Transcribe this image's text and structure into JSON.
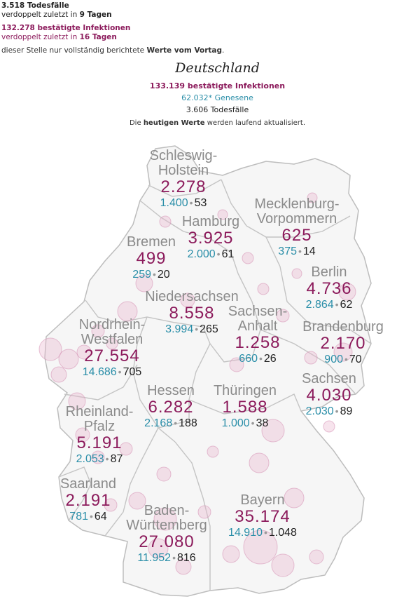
{
  "summary": {
    "deaths": "3.518 Todesfälle",
    "deaths_doubling_prefix": "verdoppelt zuletzt in",
    "deaths_doubling_value": "9 Tagen",
    "infections": "132.278 bestätigte Infektionen",
    "infections_doubling_prefix": "verdoppelt zuletzt in",
    "infections_doubling_value": "16 Tagen",
    "note_prefix": "dieser Stelle nur vollständig berichtete",
    "note_bold": "Werte vom Vortag",
    "note_suffix": "."
  },
  "country": {
    "name": "Deutschland",
    "infections": "133.139 bestätigte Infektionen",
    "recovered": "62.032* Genesene",
    "deaths": "3.606 Todesfälle",
    "update_prefix": "Die",
    "update_bold": "heutigen Werte",
    "update_suffix": "werden laufend aktualisiert."
  },
  "states": [
    {
      "name_l1": "Schleswig-",
      "name_l2": "Holstein",
      "infections": "2.278",
      "recovered": "1.400",
      "deaths": "53"
    },
    {
      "name_l1": "Hamburg",
      "name_l2": "",
      "infections": "3.925",
      "recovered": "2.000",
      "deaths": "61"
    },
    {
      "name_l1": "Mecklenburg-",
      "name_l2": "Vorpommern",
      "infections": "625",
      "recovered": "375",
      "deaths": "14"
    },
    {
      "name_l1": "Bremen",
      "name_l2": "",
      "infections": "499",
      "recovered": "259",
      "deaths": "20"
    },
    {
      "name_l1": "Berlin",
      "name_l2": "",
      "infections": "4.736",
      "recovered": "2.864",
      "deaths": "62"
    },
    {
      "name_l1": "Niedersachsen",
      "name_l2": "",
      "infections": "8.558",
      "recovered": "3.994",
      "deaths": "265"
    },
    {
      "name_l1": "Sachsen-",
      "name_l2": "Anhalt",
      "infections": "1.258",
      "recovered": "660",
      "deaths": "26"
    },
    {
      "name_l1": "Brandenburg",
      "name_l2": "",
      "infections": "2.170",
      "recovered": "900",
      "deaths": "70"
    },
    {
      "name_l1": "Nordrhein-",
      "name_l2": "Westfalen",
      "infections": "27.554",
      "recovered": "14.686",
      "deaths": "705"
    },
    {
      "name_l1": "Hessen",
      "name_l2": "",
      "infections": "6.282",
      "recovered": "2.168",
      "deaths": "188"
    },
    {
      "name_l1": "Thüringen",
      "name_l2": "",
      "infections": "1.588",
      "recovered": "1.000",
      "deaths": "38"
    },
    {
      "name_l1": "Sachsen",
      "name_l2": "",
      "infections": "4.030",
      "recovered": "2.030",
      "deaths": "89"
    },
    {
      "name_l1": "Rheinland-",
      "name_l2": "Pfalz",
      "infections": "5.191",
      "recovered": "2.053",
      "deaths": "87"
    },
    {
      "name_l1": "Saarland",
      "name_l2": "",
      "infections": "2.191",
      "recovered": "781",
      "deaths": "64"
    },
    {
      "name_l1": "Baden-",
      "name_l2": "Württemberg",
      "infections": "27.080",
      "recovered": "11.952",
      "deaths": "816"
    },
    {
      "name_l1": "Bayern",
      "name_l2": "",
      "infections": "35.174",
      "recovered": "14.910",
      "deaths": "1.048"
    }
  ],
  "colors": {
    "infections": "#8c1b5c",
    "recovered": "#2a8ea8",
    "deaths": "#222222",
    "state_label": "#8b8b8b",
    "map_fill": "#f6f6f6",
    "borders": "#bdbdbd",
    "bubble": "#e9b7cf"
  }
}
